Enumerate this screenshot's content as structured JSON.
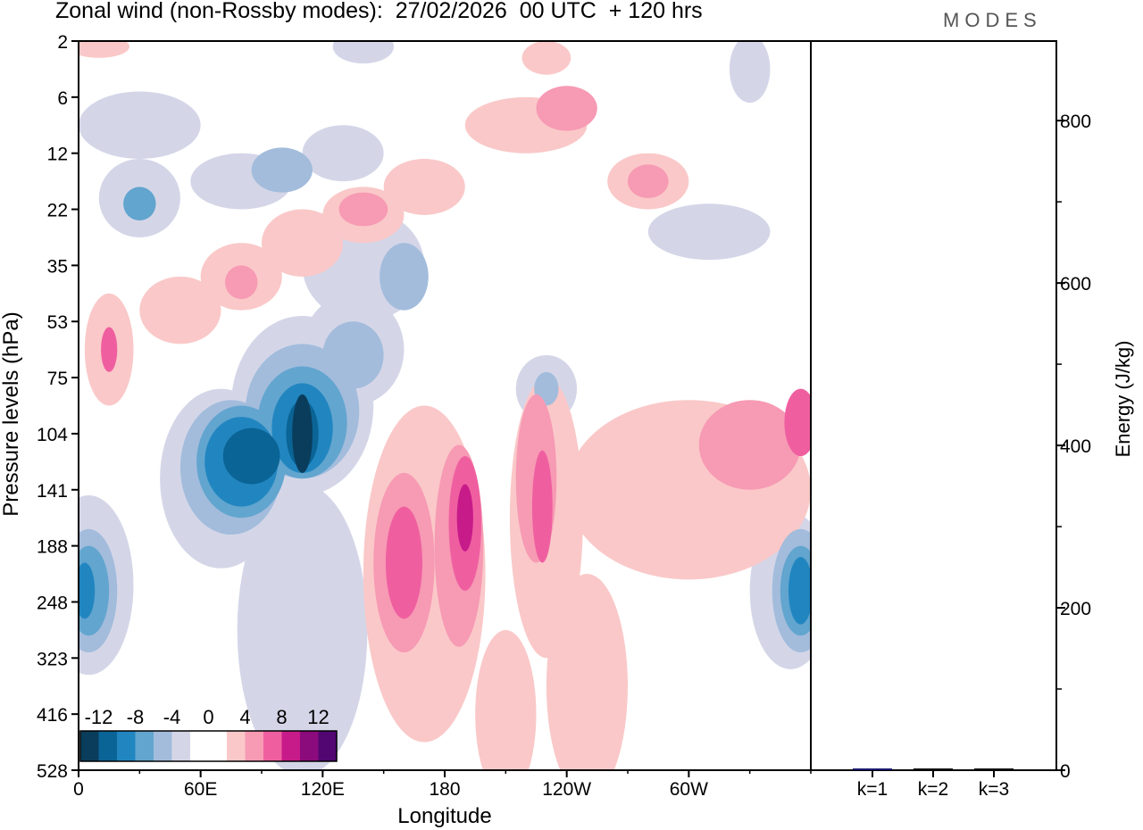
{
  "title": "Zonal wind (non-Rossby modes):  27/02/2026  00 UTC  + 120 hrs",
  "logo": "MODES",
  "colors": {
    "levels": [
      -14,
      -12,
      -10,
      -8,
      -6,
      -4,
      -2,
      2,
      4,
      6,
      8,
      10,
      12,
      14
    ],
    "fills": [
      "#0a3d5c",
      "#0b6496",
      "#2186c0",
      "#62a5cf",
      "#a3bcdc",
      "#d4d6e8",
      "#ffffff",
      "#fac8c8",
      "#f79ab4",
      "#ef5fa0",
      "#c81b8a",
      "#8b0a7c",
      "#520672"
    ]
  },
  "chart_data": [
    {
      "type": "heatmap",
      "title": "Zonal wind (non-Rossby modes)",
      "xlabel": "Longitude",
      "ylabel": "Pressure levels (hPa)",
      "x_ticks": [
        "0",
        "60E",
        "120E",
        "180",
        "120W",
        "60W"
      ],
      "x_tick_values": [
        0,
        60,
        120,
        180,
        240,
        300
      ],
      "xlim": [
        0,
        360
      ],
      "y_ticks": [
        "2",
        "6",
        "12",
        "22",
        "35",
        "53",
        "75",
        "104",
        "141",
        "188",
        "248",
        "323",
        "416",
        "528"
      ],
      "colorbar_labels": [
        "-12",
        "-8",
        "-4",
        "0",
        "4",
        "8",
        "12"
      ],
      "features_note": "approximate wind anomaly blobs: [lon_deg, level_index, half_width_deg, half_height_levels, value_m_s]",
      "features": [
        [
          110,
          10.5,
          32,
          2.6,
          -3
        ],
        [
          5,
          9.7,
          22,
          1.6,
          -3
        ],
        [
          350,
          9.8,
          20,
          1.4,
          -3
        ],
        [
          30,
          1.5,
          30,
          0.6,
          -3
        ],
        [
          30,
          2.8,
          20,
          0.7,
          -3
        ],
        [
          80,
          2.5,
          25,
          0.5,
          -3
        ],
        [
          130,
          2.0,
          20,
          0.5,
          -3
        ],
        [
          140,
          4.0,
          30,
          1.0,
          -3
        ],
        [
          230,
          6.2,
          15,
          0.6,
          -3
        ],
        [
          310,
          3.4,
          30,
          0.5,
          -3
        ],
        [
          330,
          0.5,
          10,
          0.6,
          -3
        ],
        [
          140,
          0.1,
          15,
          0.3,
          -3
        ],
        [
          70,
          7.8,
          30,
          1.6,
          -3
        ],
        [
          110,
          6.5,
          35,
          1.6,
          -3
        ],
        [
          135,
          5.5,
          25,
          1.0,
          -3
        ],
        [
          75,
          7.6,
          25,
          1.2,
          -5
        ],
        [
          110,
          6.6,
          28,
          1.2,
          -5
        ],
        [
          135,
          5.6,
          15,
          0.6,
          -5
        ],
        [
          100,
          2.3,
          15,
          0.4,
          -5
        ],
        [
          160,
          4.2,
          12,
          0.6,
          -5
        ],
        [
          230,
          6.2,
          6,
          0.3,
          -5
        ],
        [
          5,
          9.8,
          14,
          1.1,
          -5
        ],
        [
          355,
          9.8,
          14,
          1.1,
          -5
        ],
        [
          80,
          7.5,
          22,
          1.0,
          -7
        ],
        [
          110,
          6.8,
          22,
          1.0,
          -7
        ],
        [
          5,
          9.8,
          10,
          0.8,
          -7
        ],
        [
          30,
          2.9,
          8,
          0.3,
          -7
        ],
        [
          355,
          9.8,
          10,
          0.8,
          -7
        ],
        [
          80,
          7.5,
          18,
          0.8,
          -9
        ],
        [
          110,
          6.9,
          15,
          0.8,
          -9
        ],
        [
          3,
          9.8,
          5,
          0.5,
          -9
        ],
        [
          355,
          9.8,
          6,
          0.6,
          -9
        ],
        [
          85,
          7.4,
          14,
          0.5,
          -11
        ],
        [
          110,
          7.0,
          8,
          0.6,
          -11
        ],
        [
          110,
          7.0,
          5,
          0.7,
          -13
        ],
        [
          170,
          9.5,
          30,
          3.0,
          3
        ],
        [
          230,
          8.5,
          18,
          2.5,
          3
        ],
        [
          300,
          8.0,
          60,
          1.6,
          3
        ],
        [
          250,
          11.5,
          20,
          2.0,
          3
        ],
        [
          210,
          12.0,
          15,
          1.5,
          3
        ],
        [
          15,
          5.5,
          12,
          1.0,
          3
        ],
        [
          50,
          4.8,
          20,
          0.6,
          3
        ],
        [
          80,
          4.2,
          20,
          0.6,
          3
        ],
        [
          110,
          3.6,
          20,
          0.6,
          3
        ],
        [
          140,
          3.1,
          20,
          0.5,
          3
        ],
        [
          170,
          2.6,
          20,
          0.5,
          3
        ],
        [
          220,
          1.5,
          30,
          0.5,
          3
        ],
        [
          280,
          2.5,
          20,
          0.5,
          3
        ],
        [
          230,
          0.3,
          12,
          0.3,
          3
        ],
        [
          10,
          0.1,
          15,
          0.2,
          3
        ],
        [
          160,
          9.3,
          15,
          1.6,
          5
        ],
        [
          187,
          9.0,
          12,
          1.8,
          5
        ],
        [
          225,
          7.8,
          10,
          1.5,
          5
        ],
        [
          330,
          7.2,
          25,
          0.8,
          5
        ],
        [
          80,
          4.3,
          8,
          0.3,
          5
        ],
        [
          140,
          3.0,
          12,
          0.3,
          5
        ],
        [
          240,
          1.2,
          15,
          0.4,
          5
        ],
        [
          280,
          2.5,
          10,
          0.3,
          5
        ],
        [
          160,
          9.3,
          9,
          1.0,
          7
        ],
        [
          190,
          8.6,
          8,
          1.2,
          7
        ],
        [
          228,
          8.3,
          5,
          1.0,
          7
        ],
        [
          355,
          6.8,
          8,
          0.6,
          7
        ],
        [
          15,
          5.5,
          4,
          0.4,
          7
        ],
        [
          190,
          8.5,
          4,
          0.6,
          9
        ]
      ]
    },
    {
      "type": "bar",
      "categories": [
        "k=1",
        "k=2",
        "k=3"
      ],
      "values": [
        2,
        1,
        1
      ],
      "ylabel": "Energy (J/kg)",
      "y_ticks": [
        "0",
        "200",
        "400",
        "600",
        "800"
      ],
      "ylim": [
        0,
        898
      ]
    }
  ]
}
